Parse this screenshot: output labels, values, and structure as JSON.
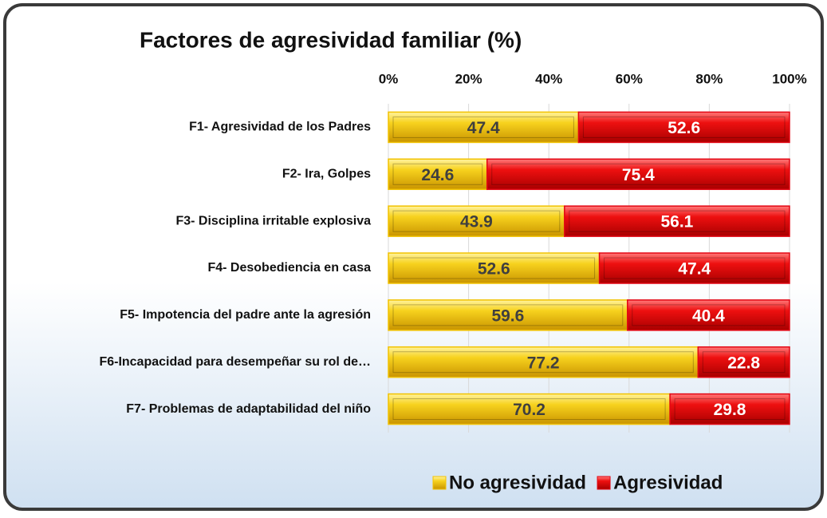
{
  "chart_data": {
    "type": "stacked_bar_horizontal",
    "title": "Factores de agresividad familiar (%)",
    "categories": [
      "F1- Agresividad de los Padres",
      "F2- Ira, Golpes",
      "F3- Disciplina irritable explosiva",
      "F4- Desobediencia en casa",
      "F5- Impotencia del padre ante la agresión",
      "F6-Incapacidad para desempeñar su rol de…",
      "F7- Problemas de adaptabilidad del niño"
    ],
    "series": [
      {
        "name": "No agresividad",
        "color": "#f2c200",
        "values": [
          47.4,
          24.6,
          43.9,
          52.6,
          59.6,
          77.2,
          70.2
        ]
      },
      {
        "name": "Agresividad",
        "color": "#e30613",
        "values": [
          52.6,
          75.4,
          56.1,
          47.4,
          40.4,
          22.8,
          29.8
        ]
      }
    ],
    "xlim": [
      0,
      100
    ],
    "xticks": [
      {
        "value": 0,
        "label": "0%"
      },
      {
        "value": 20,
        "label": "20%"
      },
      {
        "value": 40,
        "label": "40%"
      },
      {
        "value": 60,
        "label": "60%"
      },
      {
        "value": 80,
        "label": "80%"
      },
      {
        "value": 100,
        "label": "100%"
      }
    ],
    "grid": true,
    "legend": "bottom"
  }
}
